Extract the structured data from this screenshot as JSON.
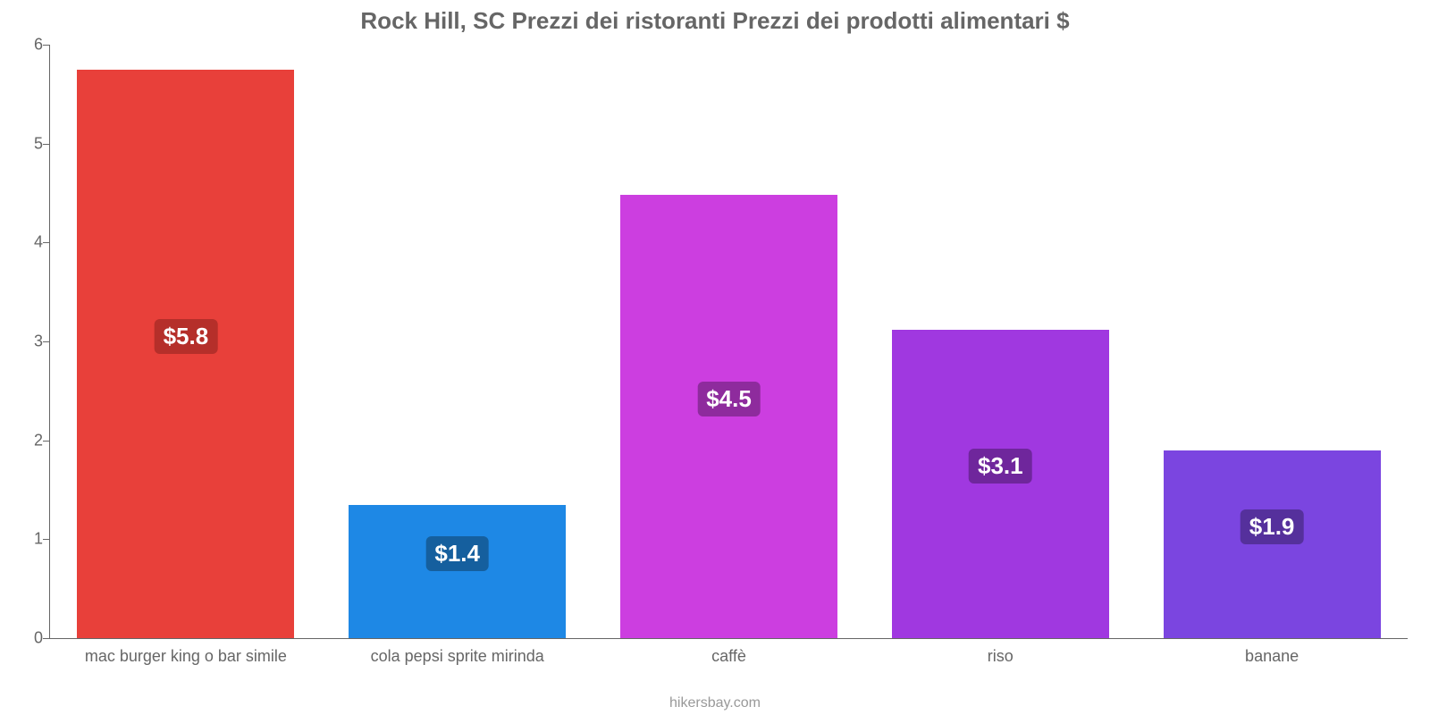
{
  "chart": {
    "type": "bar",
    "title": "Rock Hill, SC Prezzi dei ristoranti Prezzi dei prodotti alimentari $",
    "title_fontsize": 26,
    "title_color": "#666666",
    "attribution": "hikersbay.com",
    "attribution_color": "#999999",
    "background_color": "#ffffff",
    "axis_color": "#666666",
    "tick_label_color": "#666666",
    "tick_label_fontsize": 18,
    "xlabel_fontsize": 18,
    "value_label_fontsize": 26,
    "value_label_color": "#ffffff",
    "ylim_min": 0,
    "ylim_max": 6,
    "ytick_step": 1,
    "yticks": [
      0,
      1,
      2,
      3,
      4,
      5,
      6
    ],
    "bar_width_pct": 16,
    "bar_gap_pct": 4,
    "first_bar_left_pct": 2,
    "categories": [
      "mac burger king o bar simile",
      "cola pepsi sprite mirinda",
      "caffè",
      "riso",
      "banane"
    ],
    "values": [
      5.75,
      1.35,
      4.48,
      3.12,
      1.9
    ],
    "value_labels": [
      "$5.8",
      "$1.4",
      "$4.5",
      "$3.1",
      "$1.9"
    ],
    "bar_colors": [
      "#e8403a",
      "#1e88e5",
      "#cc3ee0",
      "#a038e0",
      "#7b45e0"
    ],
    "badge_colors": [
      "#b52f2a",
      "#155f9e",
      "#8e2b9d",
      "#6f269c",
      "#55309c"
    ]
  }
}
